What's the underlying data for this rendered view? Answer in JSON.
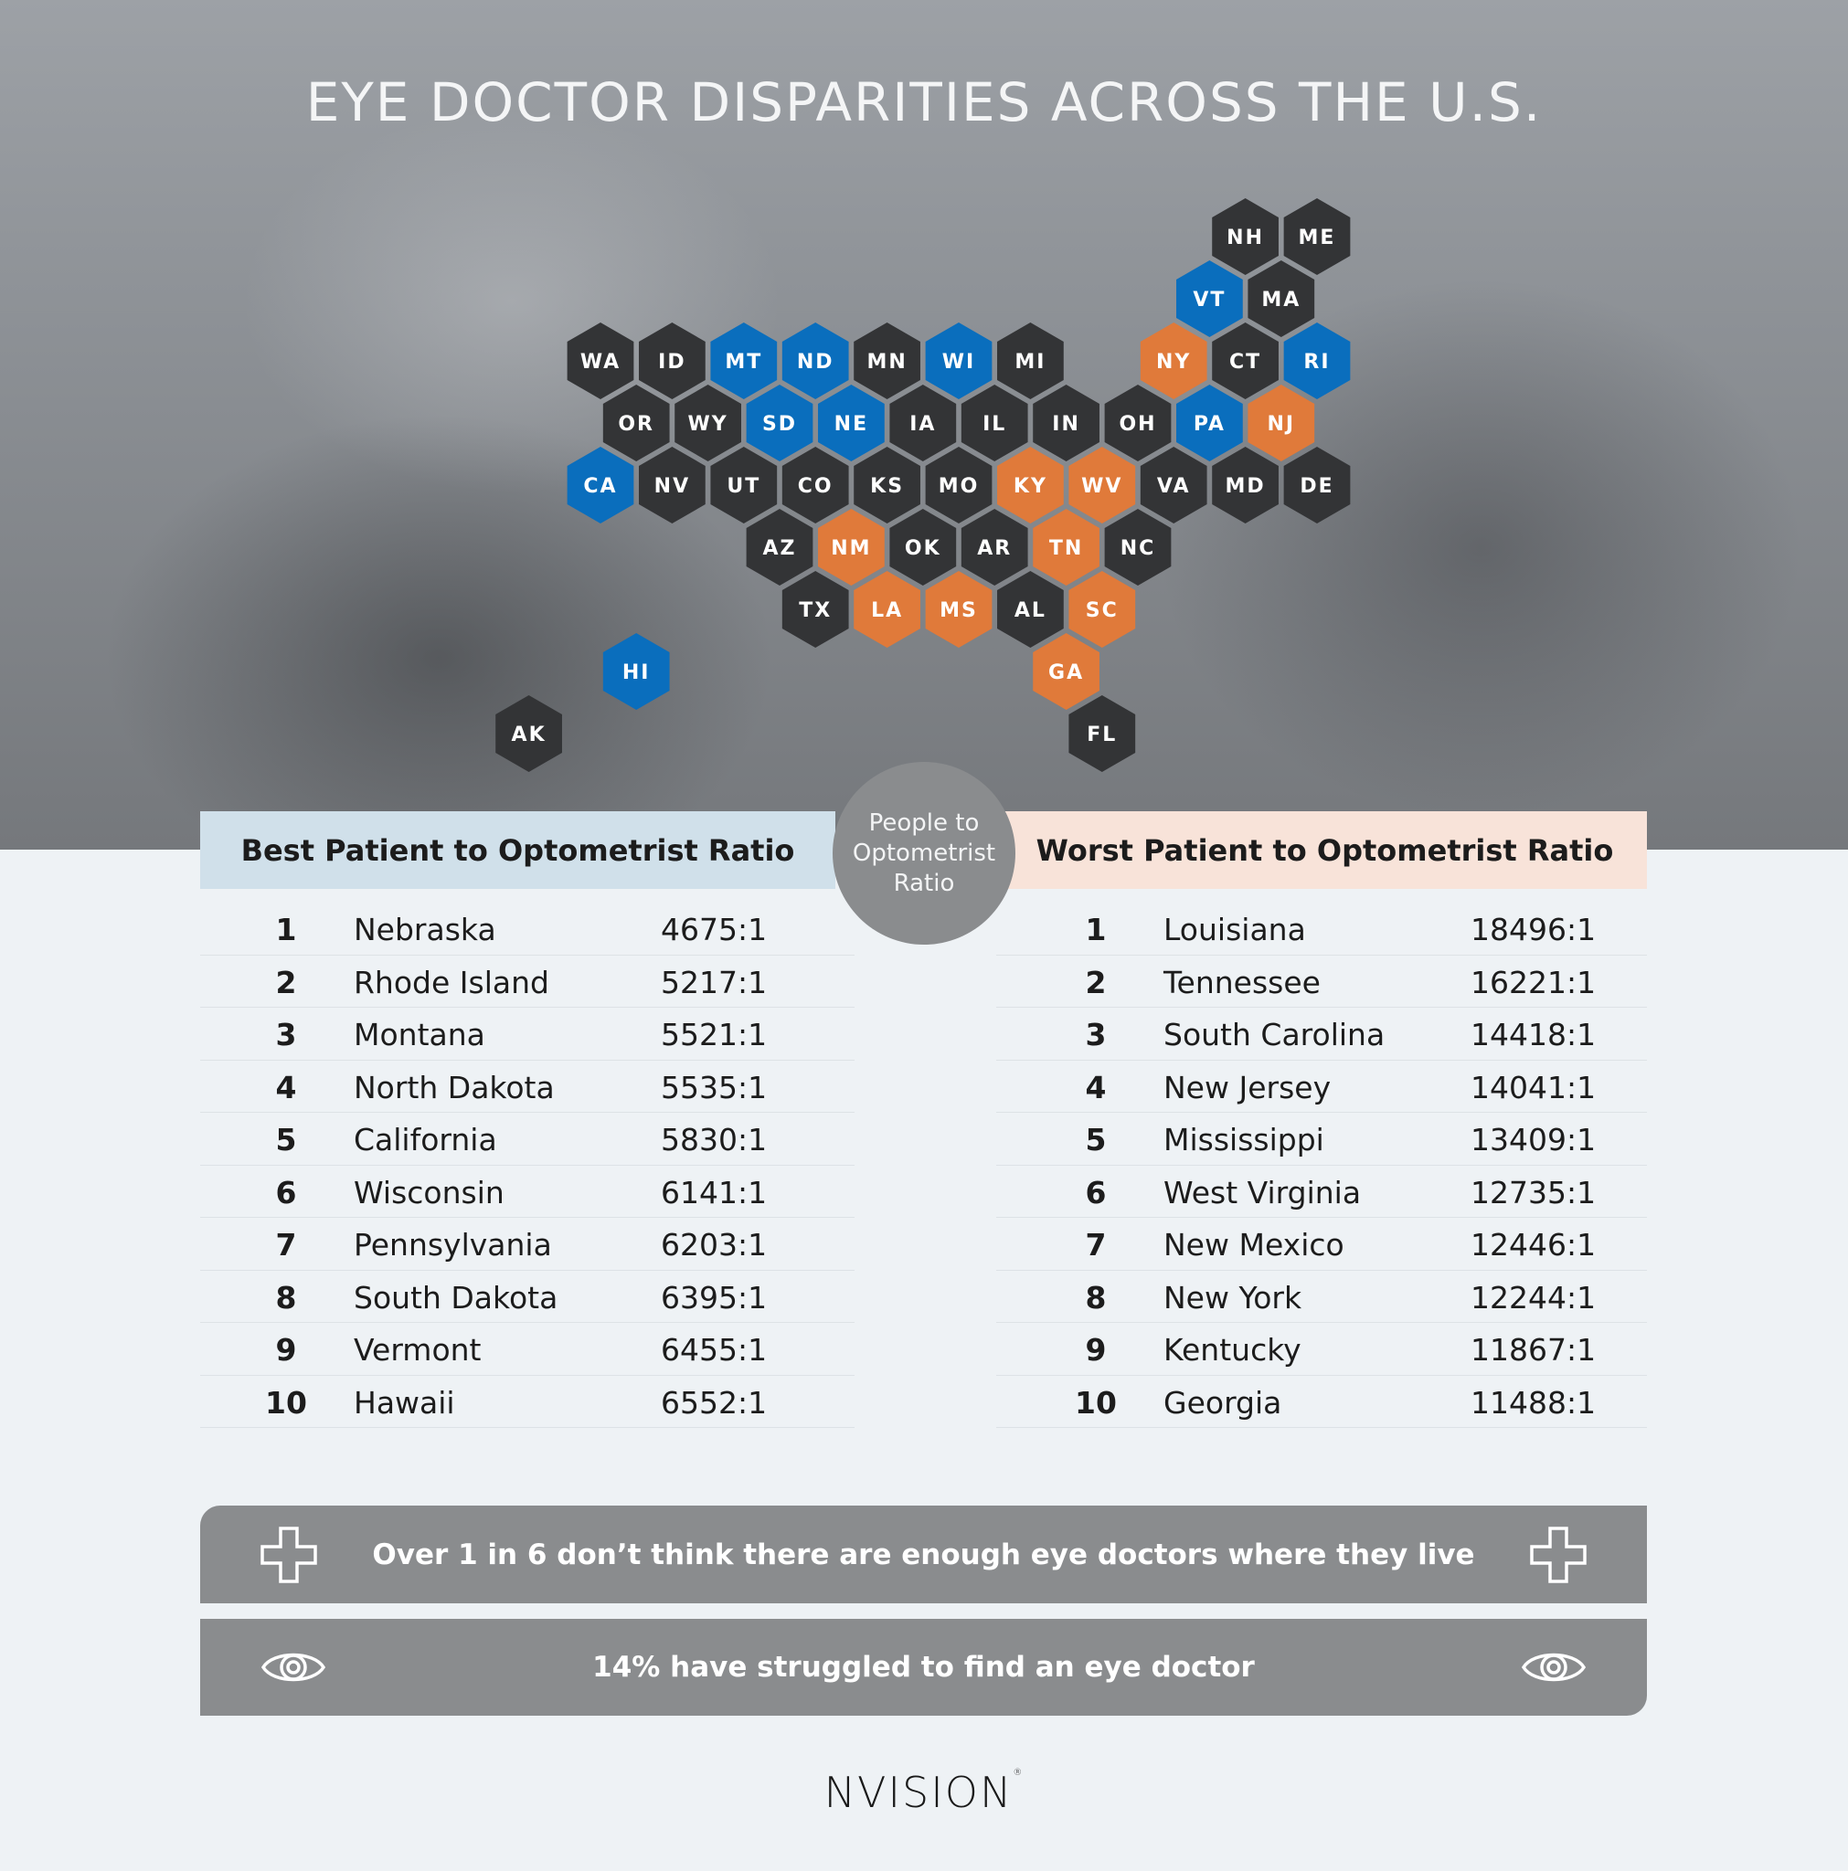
{
  "title": "EYE DOCTOR DISPARITIES ACROSS THE U.S.",
  "colors": {
    "best": "#0a6ebd",
    "worst": "#e07a3a",
    "other": "#333436",
    "banner": "#8a8c8e"
  },
  "map": {
    "states": [
      {
        "code": "NH",
        "category": "other"
      },
      {
        "code": "ME",
        "category": "other"
      },
      {
        "code": "VT",
        "category": "best"
      },
      {
        "code": "MA",
        "category": "other"
      },
      {
        "code": "WA",
        "category": "other"
      },
      {
        "code": "ID",
        "category": "other"
      },
      {
        "code": "MT",
        "category": "best"
      },
      {
        "code": "ND",
        "category": "best"
      },
      {
        "code": "MN",
        "category": "other"
      },
      {
        "code": "WI",
        "category": "best"
      },
      {
        "code": "MI",
        "category": "other"
      },
      {
        "code": "NY",
        "category": "worst"
      },
      {
        "code": "CT",
        "category": "other"
      },
      {
        "code": "RI",
        "category": "best"
      },
      {
        "code": "OR",
        "category": "other"
      },
      {
        "code": "WY",
        "category": "other"
      },
      {
        "code": "SD",
        "category": "best"
      },
      {
        "code": "NE",
        "category": "best"
      },
      {
        "code": "IA",
        "category": "other"
      },
      {
        "code": "IL",
        "category": "other"
      },
      {
        "code": "IN",
        "category": "other"
      },
      {
        "code": "OH",
        "category": "other"
      },
      {
        "code": "PA",
        "category": "best"
      },
      {
        "code": "NJ",
        "category": "worst"
      },
      {
        "code": "CA",
        "category": "best"
      },
      {
        "code": "NV",
        "category": "other"
      },
      {
        "code": "UT",
        "category": "other"
      },
      {
        "code": "CO",
        "category": "other"
      },
      {
        "code": "KS",
        "category": "other"
      },
      {
        "code": "MO",
        "category": "other"
      },
      {
        "code": "KY",
        "category": "worst"
      },
      {
        "code": "WV",
        "category": "worst"
      },
      {
        "code": "VA",
        "category": "other"
      },
      {
        "code": "MD",
        "category": "other"
      },
      {
        "code": "DE",
        "category": "other"
      },
      {
        "code": "AZ",
        "category": "other"
      },
      {
        "code": "NM",
        "category": "worst"
      },
      {
        "code": "OK",
        "category": "other"
      },
      {
        "code": "AR",
        "category": "other"
      },
      {
        "code": "TN",
        "category": "worst"
      },
      {
        "code": "NC",
        "category": "other"
      },
      {
        "code": "TX",
        "category": "other"
      },
      {
        "code": "LA",
        "category": "worst"
      },
      {
        "code": "MS",
        "category": "worst"
      },
      {
        "code": "AL",
        "category": "other"
      },
      {
        "code": "SC",
        "category": "worst"
      },
      {
        "code": "HI",
        "category": "best"
      },
      {
        "code": "GA",
        "category": "worst"
      },
      {
        "code": "AK",
        "category": "other"
      },
      {
        "code": "FL",
        "category": "other"
      }
    ]
  },
  "circle_label": "People to Optometrist Ratio",
  "best": {
    "heading": "Best Patient to Optometrist Ratio",
    "rows": [
      {
        "rank": "1",
        "state": "Nebraska",
        "ratio": "4675:1"
      },
      {
        "rank": "2",
        "state": "Rhode Island",
        "ratio": "5217:1"
      },
      {
        "rank": "3",
        "state": "Montana",
        "ratio": "5521:1"
      },
      {
        "rank": "4",
        "state": "North Dakota",
        "ratio": "5535:1"
      },
      {
        "rank": "5",
        "state": "California",
        "ratio": "5830:1"
      },
      {
        "rank": "6",
        "state": "Wisconsin",
        "ratio": "6141:1"
      },
      {
        "rank": "7",
        "state": "Pennsylvania",
        "ratio": "6203:1"
      },
      {
        "rank": "8",
        "state": "South Dakota",
        "ratio": "6395:1"
      },
      {
        "rank": "9",
        "state": "Vermont",
        "ratio": "6455:1"
      },
      {
        "rank": "10",
        "state": "Hawaii",
        "ratio": "6552:1"
      }
    ]
  },
  "worst": {
    "heading": "Worst Patient to Optometrist Ratio",
    "rows": [
      {
        "rank": "1",
        "state": "Louisiana",
        "ratio": "18496:1"
      },
      {
        "rank": "2",
        "state": "Tennessee",
        "ratio": "16221:1"
      },
      {
        "rank": "3",
        "state": "South Carolina",
        "ratio": "14418:1"
      },
      {
        "rank": "4",
        "state": "New Jersey",
        "ratio": "14041:1"
      },
      {
        "rank": "5",
        "state": "Mississippi",
        "ratio": "13409:1"
      },
      {
        "rank": "6",
        "state": "West Virginia",
        "ratio": "12735:1"
      },
      {
        "rank": "7",
        "state": "New Mexico",
        "ratio": "12446:1"
      },
      {
        "rank": "8",
        "state": "New York",
        "ratio": "12244:1"
      },
      {
        "rank": "9",
        "state": "Kentucky",
        "ratio": "11867:1"
      },
      {
        "rank": "10",
        "state": "Georgia",
        "ratio": "11488:1"
      }
    ]
  },
  "banners": [
    {
      "text": "Over 1 in 6 don’t think there are enough eye doctors where they live",
      "icon": "medical-cross-icon"
    },
    {
      "text": "14% have struggled to find an eye doctor",
      "icon": "eye-icon"
    }
  ],
  "logo": "NVISION"
}
